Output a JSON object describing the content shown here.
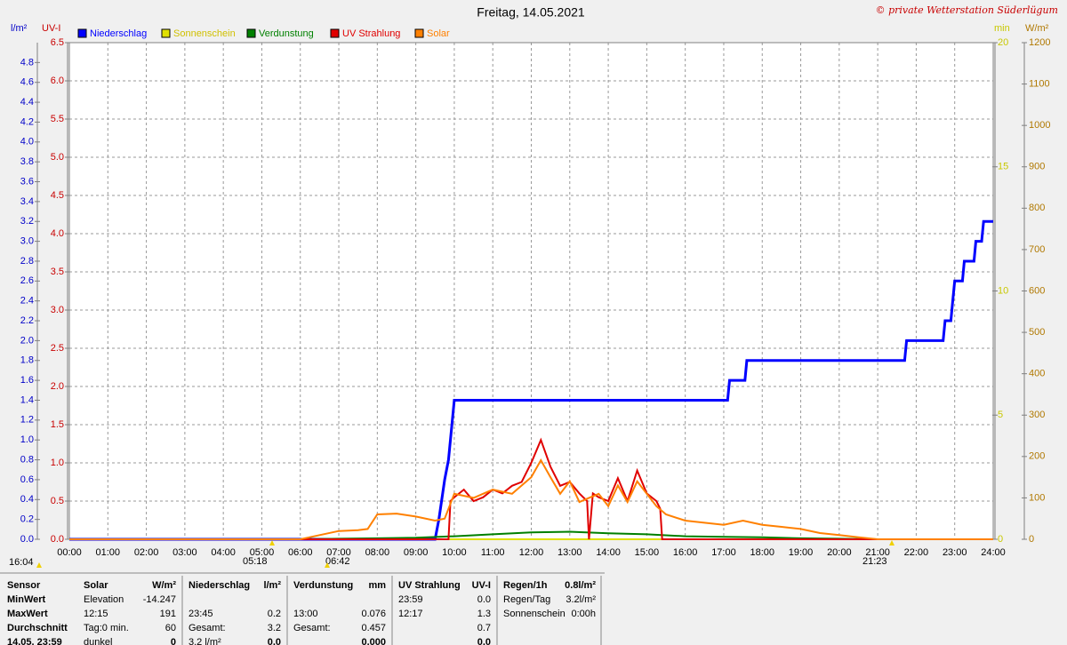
{
  "chart_data": {
    "type": "line",
    "title": "Freitag, 14.05.2021",
    "copyright": "© private Wetterstation Süderlügum",
    "grid": true,
    "xlim": [
      0,
      24
    ],
    "xticks": [
      {
        "value": 0,
        "label": "00:00"
      },
      {
        "value": 1,
        "label": "01:00"
      },
      {
        "value": 2,
        "label": "02:00"
      },
      {
        "value": 3,
        "label": "03:00"
      },
      {
        "value": 4,
        "label": "04:00"
      },
      {
        "value": 5,
        "label": "05:00"
      },
      {
        "value": 6,
        "label": "06:00"
      },
      {
        "value": 7,
        "label": "07:00"
      },
      {
        "value": 8,
        "label": "08:00"
      },
      {
        "value": 9,
        "label": "09:00"
      },
      {
        "value": 10,
        "label": "10:00"
      },
      {
        "value": 11,
        "label": "11:00"
      },
      {
        "value": 12,
        "label": "12:00"
      },
      {
        "value": 13,
        "label": "13:00"
      },
      {
        "value": 14,
        "label": "14:00"
      },
      {
        "value": 15,
        "label": "15:00"
      },
      {
        "value": 16,
        "label": "16:00"
      },
      {
        "value": 17,
        "label": "17:00"
      },
      {
        "value": 18,
        "label": "18:00"
      },
      {
        "value": 19,
        "label": "19:00"
      },
      {
        "value": 20,
        "label": "20:00"
      },
      {
        "value": 21,
        "label": "21:00"
      },
      {
        "value": 22,
        "label": "22:00"
      },
      {
        "value": 23,
        "label": "23:00"
      },
      {
        "value": 24,
        "label": "24:00"
      }
    ],
    "axes": [
      {
        "label": "l/m²",
        "color": "#0000c8",
        "lim": [
          0,
          5
        ],
        "ticks": [
          {
            "value": 0,
            "label": "0.0"
          },
          0.2,
          0.4,
          0.6,
          0.8,
          {
            "value": 1,
            "label": "1.0"
          },
          1.2,
          1.4,
          1.6,
          1.8,
          {
            "value": 2,
            "label": "2.0"
          },
          2.2,
          2.4,
          2.6,
          2.8,
          {
            "value": 3,
            "label": "3.0"
          },
          3.2,
          3.4,
          3.6,
          3.8,
          {
            "value": 4,
            "label": "4.0"
          },
          4.2,
          4.4,
          4.6,
          4.8
        ]
      },
      {
        "label": "UV-I",
        "color": "#c80000",
        "lim": [
          0,
          6.5
        ],
        "ticks": [
          {
            "value": 0,
            "label": "0.0"
          },
          0.5,
          {
            "value": 1,
            "label": "1.0"
          },
          1.5,
          {
            "value": 2,
            "label": "2.0"
          },
          2.5,
          {
            "value": 3,
            "label": "3.0"
          },
          3.5,
          {
            "value": 4,
            "label": "4.0"
          },
          4.5,
          {
            "value": 5,
            "label": "5.0"
          },
          5.5,
          {
            "value": 6,
            "label": "6.0"
          },
          6.5
        ]
      },
      {
        "label": "min",
        "color": "#c8c800",
        "lim": [
          0,
          20
        ],
        "ticks": [
          0,
          5,
          10,
          15,
          20
        ]
      },
      {
        "label": "W/m²",
        "color": "#b07800",
        "lim": [
          0,
          1200
        ],
        "ticks": [
          0,
          100,
          200,
          300,
          400,
          500,
          600,
          700,
          800,
          900,
          1000,
          1100,
          1200
        ]
      }
    ],
    "series": [
      {
        "name": "Niederschlag",
        "color": "#0000ff",
        "axis": 0,
        "x": [
          0,
          9.5,
          9.6,
          9.75,
          9.85,
          10,
          17.1,
          17.15,
          17.55,
          17.6,
          21.7,
          21.75,
          22.7,
          22.75,
          22.9,
          22.95,
          23,
          23.2,
          23.25,
          23.5,
          23.55,
          23.7,
          23.75,
          24
        ],
        "values": [
          0,
          0,
          0.2,
          0.6,
          0.8,
          1.4,
          1.4,
          1.6,
          1.6,
          1.8,
          1.8,
          2.0,
          2.0,
          2.2,
          2.2,
          2.4,
          2.6,
          2.6,
          2.8,
          2.8,
          3.0,
          3.0,
          3.2,
          3.2
        ]
      },
      {
        "name": "Sonnenschein",
        "color": "#e0e000",
        "axis": 2,
        "x": [
          0,
          24
        ],
        "values": [
          0,
          0
        ]
      },
      {
        "name": "Verdunstung",
        "color": "#008000",
        "axis": 0,
        "x": [
          0,
          6,
          7,
          8,
          9,
          10,
          11,
          12,
          13,
          14,
          15,
          16,
          17,
          18,
          19,
          20,
          21,
          24
        ],
        "values": [
          0,
          0,
          0.005,
          0.01,
          0.015,
          0.03,
          0.05,
          0.07,
          0.076,
          0.06,
          0.05,
          0.03,
          0.025,
          0.02,
          0.01,
          0.005,
          0,
          0
        ]
      },
      {
        "name": "UV Strahlung",
        "color": "#e00000",
        "axis": 1,
        "x": [
          0,
          9.85,
          9.9,
          10,
          10.25,
          10.5,
          10.75,
          11,
          11.25,
          11.5,
          11.75,
          12,
          12.25,
          12.5,
          12.75,
          13,
          13.25,
          13.45,
          13.5,
          13.6,
          13.75,
          14,
          14.25,
          14.5,
          14.75,
          15,
          15.25,
          15.35,
          15.4,
          24
        ],
        "values": [
          0,
          0,
          0.5,
          0.55,
          0.65,
          0.5,
          0.55,
          0.65,
          0.6,
          0.7,
          0.75,
          1.0,
          1.3,
          0.95,
          0.7,
          0.75,
          0.6,
          0.5,
          0,
          0.6,
          0.55,
          0.5,
          0.8,
          0.5,
          0.9,
          0.6,
          0.5,
          0.4,
          0,
          0
        ]
      },
      {
        "name": "Solar",
        "color": "#ff8000",
        "axis": 3,
        "x": [
          0,
          6,
          6.5,
          7,
          7.5,
          7.75,
          8,
          8.5,
          9,
          9.5,
          9.75,
          10,
          10.5,
          11,
          11.5,
          12,
          12.25,
          12.5,
          12.75,
          13,
          13.25,
          13.5,
          13.75,
          14,
          14.25,
          14.5,
          14.75,
          15,
          15.25,
          15.5,
          16,
          16.5,
          17,
          17.5,
          18,
          18.5,
          19,
          19.5,
          20,
          20.5,
          21,
          24
        ],
        "values": [
          0,
          0,
          10,
          20,
          22,
          25,
          60,
          62,
          55,
          45,
          50,
          110,
          100,
          120,
          110,
          150,
          191,
          150,
          110,
          140,
          90,
          100,
          110,
          80,
          130,
          90,
          140,
          110,
          80,
          60,
          45,
          40,
          35,
          45,
          35,
          30,
          25,
          15,
          10,
          5,
          0,
          0
        ]
      }
    ],
    "annotations": {
      "start": "16:04",
      "sunrise": "05:18",
      "twilight": "06:42",
      "sunset": "21:23"
    }
  },
  "summary": {
    "rows": [
      [
        "Sensor",
        "Solar",
        "W/m²",
        "Niederschlag",
        "l/m²",
        "Verdunstung",
        "mm",
        "UV Strahlung",
        "UV-I",
        "Regen/1h",
        "0.8l/m²"
      ],
      [
        "MinWert",
        "Elevation",
        "-14.247",
        null,
        null,
        null,
        null,
        "23:59",
        "0.0",
        "Regen/Tag",
        "3.2l/m²"
      ],
      [
        "MaxWert",
        "12:15",
        "191",
        "23:45",
        "0.2",
        "13:00",
        "0.076",
        "12:17",
        "1.3",
        "Sonnenschein",
        "0:00h"
      ],
      [
        "Durchschnitt",
        "Tag:0 min.",
        "60",
        "Gesamt:",
        "3.2",
        "Gesamt:",
        "0.457",
        null,
        "0.7",
        null,
        null
      ],
      [
        "14.05. 23:59",
        "dunkel",
        "0",
        "3.2 l/m²",
        "0.0",
        null,
        "0.000",
        null,
        "0.0",
        null,
        null
      ]
    ]
  }
}
